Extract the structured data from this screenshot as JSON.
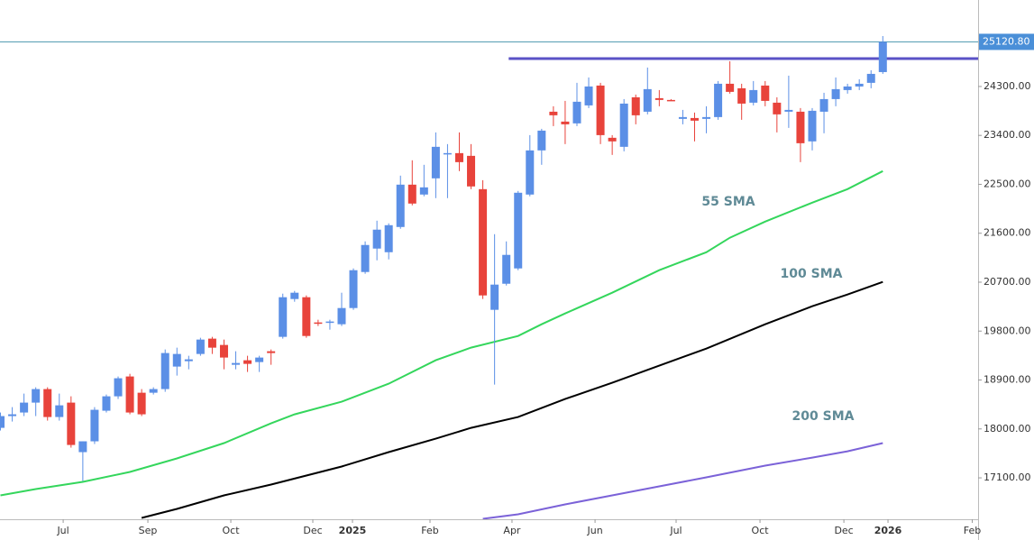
{
  "chart_data": {
    "type": "candlestick",
    "up_color": "#5b8fe6",
    "down_color": "#e8433b",
    "xlim": [
      -0.04,
      83.1
    ],
    "xticks": [
      {
        "value": 5.33,
        "label": "Jul"
      },
      {
        "value": 12.53,
        "label": "Sep"
      },
      {
        "value": 19.58,
        "label": "Oct"
      },
      {
        "value": 26.55,
        "label": "Dec"
      },
      {
        "value": 29.92,
        "label": "2025"
      },
      {
        "value": 36.51,
        "label": "Feb"
      },
      {
        "value": 43.48,
        "label": "Apr"
      },
      {
        "value": 50.54,
        "label": "Jun"
      },
      {
        "value": 57.43,
        "label": "Jul"
      },
      {
        "value": 64.56,
        "label": "Oct"
      },
      {
        "value": 71.69,
        "label": "Dec"
      },
      {
        "value": 75.44,
        "label": "2026"
      },
      {
        "value": 82.6,
        "label": "Feb"
      }
    ],
    "ylim": [
      16338,
      25891
    ],
    "yticks": [
      {
        "value": 24300,
        "label": "24300.00"
      },
      {
        "value": 23400,
        "label": "23400.00"
      },
      {
        "value": 22500,
        "label": "22500.00"
      },
      {
        "value": 21600,
        "label": "21600.00"
      },
      {
        "value": 20700,
        "label": "20700.00"
      },
      {
        "value": 19800,
        "label": "19800.00"
      },
      {
        "value": 18900,
        "label": "18900.00"
      },
      {
        "value": 18000,
        "label": "18000.00"
      },
      {
        "value": 17100,
        "label": "17100.00"
      }
    ],
    "last_label": {
      "value": 25120.8,
      "label": "25120.80"
    },
    "resistance": {
      "value": 24814,
      "from": 43.2,
      "color": "#5a52c6"
    },
    "candles": [
      [
        18020,
        18302,
        17971,
        18236
      ],
      [
        18236,
        18401,
        18136,
        18269
      ],
      [
        18302,
        18650,
        18236,
        18484
      ],
      [
        18484,
        18766,
        18236,
        18733
      ],
      [
        18733,
        18766,
        18153,
        18219
      ],
      [
        18219,
        18650,
        18153,
        18434
      ],
      [
        18484,
        18600,
        17656,
        17705
      ],
      [
        17573,
        17772,
        17043,
        17772
      ],
      [
        17772,
        18401,
        17722,
        18352
      ],
      [
        18335,
        18633,
        18302,
        18600
      ],
      [
        18600,
        18965,
        18551,
        18932
      ],
      [
        18965,
        19014,
        18269,
        18302
      ],
      [
        18666,
        18733,
        18236,
        18269
      ],
      [
        18666,
        18766,
        18633,
        18733
      ],
      [
        18733,
        19462,
        18683,
        19396
      ],
      [
        19147,
        19495,
        18981,
        19379
      ],
      [
        19246,
        19346,
        19097,
        19280
      ],
      [
        19379,
        19677,
        19346,
        19644
      ],
      [
        19661,
        19694,
        19379,
        19495
      ],
      [
        19545,
        19644,
        19097,
        19313
      ],
      [
        19180,
        19429,
        19097,
        19213
      ],
      [
        19263,
        19346,
        19048,
        19197
      ],
      [
        19230,
        19346,
        19048,
        19313
      ],
      [
        19429,
        19462,
        19180,
        19396
      ],
      [
        19694,
        20489,
        19661,
        20423
      ],
      [
        20390,
        20539,
        20340,
        20506
      ],
      [
        20423,
        20456,
        19677,
        19710
      ],
      [
        19959,
        20009,
        19893,
        19942
      ],
      [
        19959,
        20009,
        19826,
        19976
      ],
      [
        19926,
        20506,
        19893,
        20224
      ],
      [
        20224,
        20953,
        20191,
        20920
      ],
      [
        20887,
        21450,
        20854,
        21384
      ],
      [
        21318,
        21831,
        21102,
        21666
      ],
      [
        21251,
        21782,
        21119,
        21748
      ],
      [
        21715,
        22660,
        21682,
        22494
      ],
      [
        22494,
        22942,
        22113,
        22146
      ],
      [
        22312,
        22859,
        22279,
        22444
      ],
      [
        22610,
        23455,
        22246,
        23190
      ],
      [
        23058,
        23240,
        22246,
        23074
      ],
      [
        23074,
        23455,
        22743,
        22908
      ],
      [
        23024,
        23240,
        22411,
        22461
      ],
      [
        22411,
        22577,
        20390,
        20456
      ],
      [
        20191,
        21583,
        18816,
        20655
      ],
      [
        20671,
        21450,
        20638,
        21202
      ],
      [
        20953,
        22378,
        20920,
        22345
      ],
      [
        22312,
        23405,
        22279,
        23124
      ],
      [
        23124,
        23521,
        22859,
        23488
      ],
      [
        23836,
        23936,
        23571,
        23770
      ],
      [
        23654,
        24035,
        23240,
        23604
      ],
      [
        23621,
        24367,
        23571,
        24019
      ],
      [
        23952,
        24466,
        23903,
        24300
      ],
      [
        24317,
        24367,
        23240,
        23405
      ],
      [
        23356,
        23405,
        23041,
        23290
      ],
      [
        23190,
        24068,
        23107,
        23985
      ],
      [
        24101,
        24151,
        23604,
        23770
      ],
      [
        23836,
        24648,
        23787,
        24251
      ],
      [
        24085,
        24234,
        23936,
        24052
      ],
      [
        24052,
        24068,
        24035,
        24035
      ],
      [
        23704,
        23869,
        23604,
        23737
      ],
      [
        23720,
        23820,
        23290,
        23671
      ],
      [
        23704,
        23936,
        23439,
        23737
      ],
      [
        23737,
        24400,
        23687,
        24350
      ],
      [
        24350,
        24764,
        24168,
        24201
      ],
      [
        24267,
        24350,
        23687,
        23985
      ],
      [
        24002,
        24400,
        23952,
        24234
      ],
      [
        24317,
        24400,
        23936,
        24035
      ],
      [
        24002,
        24101,
        23455,
        23787
      ],
      [
        23836,
        24499,
        23538,
        23869
      ],
      [
        23836,
        23903,
        22908,
        23256
      ],
      [
        23290,
        23903,
        23124,
        23853
      ],
      [
        23836,
        24184,
        23439,
        24068
      ],
      [
        24068,
        24466,
        23936,
        24251
      ],
      [
        24234,
        24350,
        24168,
        24300
      ],
      [
        24300,
        24433,
        24234,
        24350
      ],
      [
        24367,
        24599,
        24267,
        24532
      ],
      [
        24565,
        25228,
        24532,
        25120.8
      ]
    ],
    "series": [
      {
        "name": "55 SMA",
        "color": "#34d65c",
        "x": [
          0,
          3,
          7,
          11,
          15,
          19,
          23,
          25,
          29,
          33,
          37,
          40,
          44,
          46,
          48,
          52,
          56,
          60,
          62,
          65,
          69,
          72,
          75
        ],
        "values": [
          16777,
          16893,
          17026,
          17208,
          17457,
          17739,
          18103,
          18269,
          18501,
          18832,
          19263,
          19495,
          19710,
          19926,
          20125,
          20506,
          20920,
          21251,
          21517,
          21815,
          22163,
          22411,
          22743
        ]
      },
      {
        "name": "100 SMA",
        "color": "#000000",
        "x": [
          12,
          15,
          19,
          23,
          29,
          33,
          37,
          40,
          44,
          48,
          52,
          56,
          60,
          65,
          69,
          72,
          75
        ],
        "values": [
          16363,
          16529,
          16777,
          16976,
          17308,
          17573,
          17821,
          18020,
          18219,
          18551,
          18849,
          19164,
          19478,
          19926,
          20257,
          20473,
          20705
        ]
      },
      {
        "name": "200 SMA",
        "color": "#7b62d8",
        "x": [
          41,
          44,
          48,
          52,
          56,
          60,
          65,
          69,
          72,
          75
        ],
        "values": [
          16347,
          16430,
          16612,
          16777,
          16943,
          17109,
          17324,
          17473,
          17589,
          17739
        ]
      }
    ]
  }
}
